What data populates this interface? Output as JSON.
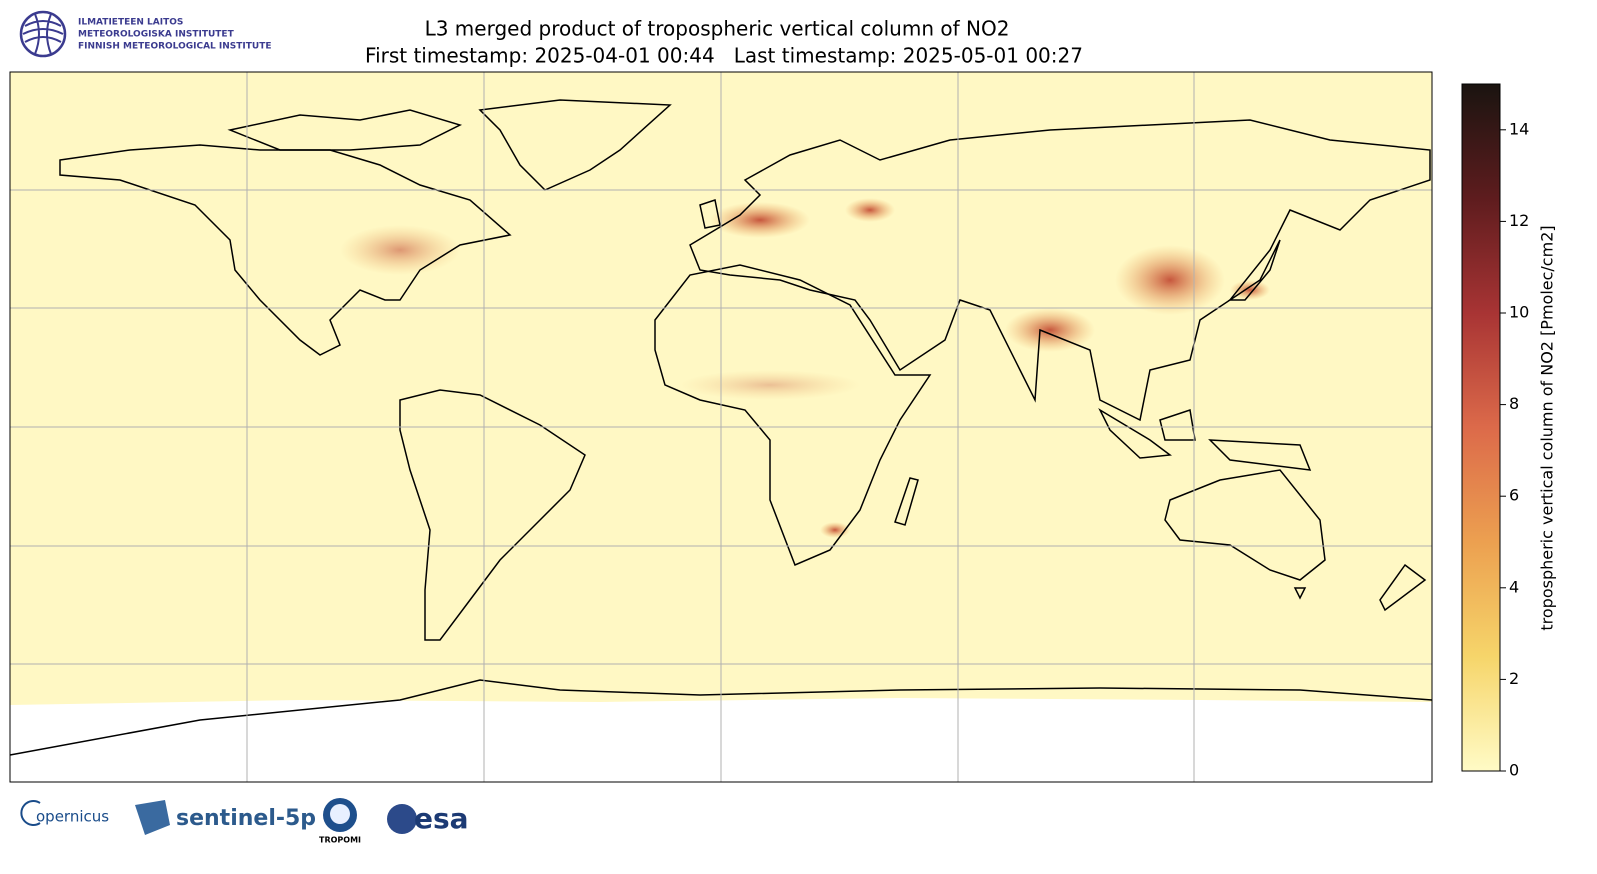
{
  "header": {
    "institute": [
      "ILMATIETEEN LAITOS",
      "METEOROLOGISKA INSTITUTET",
      "FINNISH METEOROLOGICAL INSTITUTE"
    ],
    "title": "L3 merged product of tropospheric vertical column of NO2",
    "subtitle": "First timestamp: 2025-04-01 00:44   Last timestamp: 2025-05-01 00:27"
  },
  "map": {
    "colorbar": {
      "label": "tropospheric vertical column of NO2 [Pmolec/cm2]",
      "lim": [
        0,
        15
      ],
      "ticks": [
        0,
        2,
        4,
        6,
        8,
        10,
        12,
        14
      ],
      "colormap": [
        "#fffbc6",
        "#f6d56a",
        "#eca050",
        "#dc6a4a",
        "#a83434",
        "#5e1c1e",
        "#1a1410"
      ]
    }
  },
  "footer": {
    "logos": [
      "opernicus",
      "sentinel-5p",
      "TROPOMI",
      "esa"
    ]
  }
}
